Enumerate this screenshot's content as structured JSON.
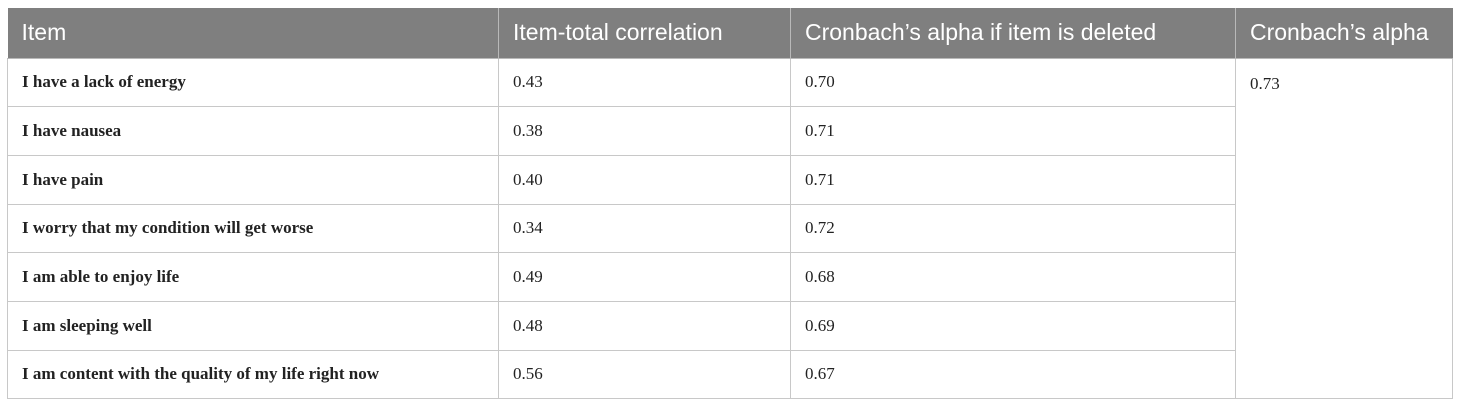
{
  "table": {
    "headers": [
      "Item",
      "Item-total correlation",
      "Cronbach’s alpha if item is deleted",
      "Cronbach’s alpha"
    ],
    "rows": [
      {
        "item": "I have a lack of energy",
        "item_total": "0.43",
        "alpha_deleted": "0.70"
      },
      {
        "item": "I have nausea",
        "item_total": "0.38",
        "alpha_deleted": "0.71"
      },
      {
        "item": "I have pain",
        "item_total": "0.40",
        "alpha_deleted": "0.71"
      },
      {
        "item": "I worry that my condition will get worse",
        "item_total": "0.34",
        "alpha_deleted": "0.72"
      },
      {
        "item": "I am able to enjoy life",
        "item_total": "0.49",
        "alpha_deleted": "0.68"
      },
      {
        "item": "I am sleeping well",
        "item_total": "0.48",
        "alpha_deleted": "0.69"
      },
      {
        "item": "I am content with the quality of my life right now",
        "item_total": "0.56",
        "alpha_deleted": "0.67"
      }
    ],
    "cronbach_alpha": "0.73"
  }
}
